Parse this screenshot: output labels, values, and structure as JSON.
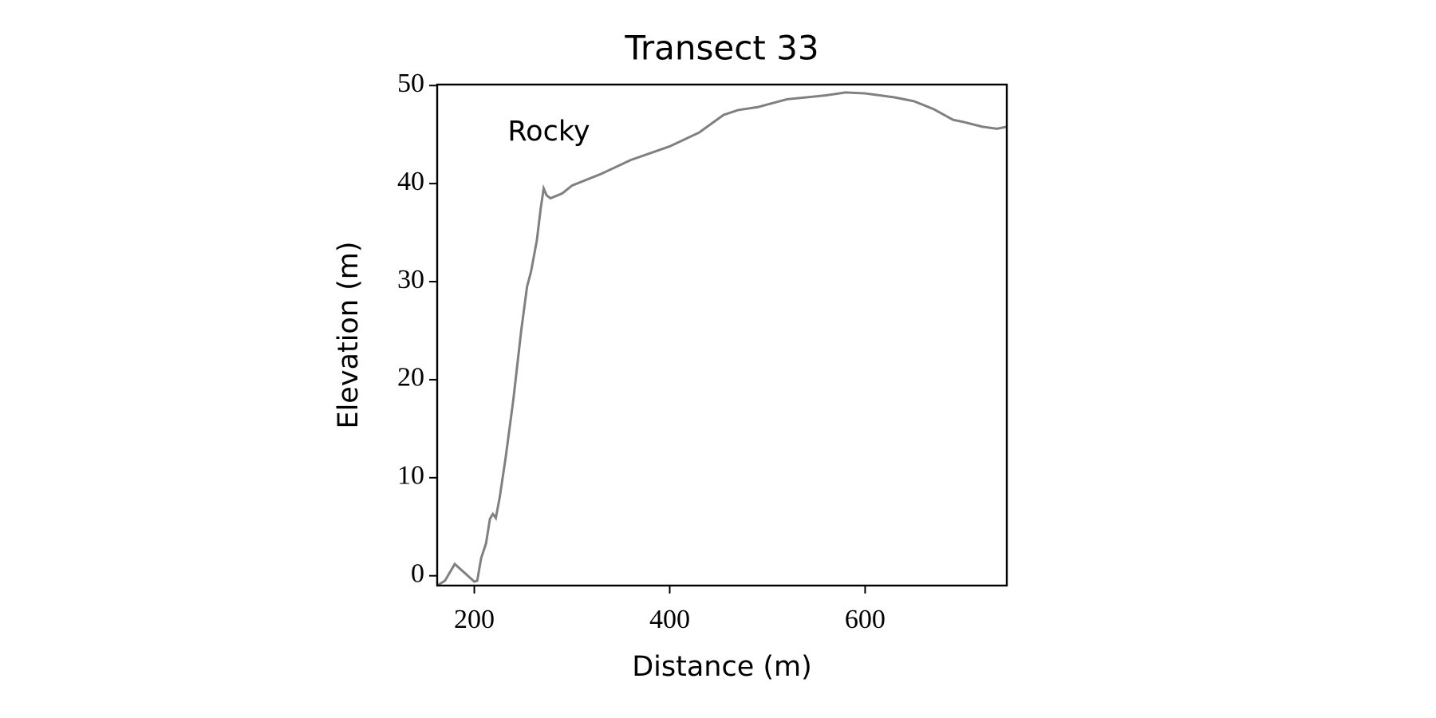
{
  "chart_data": {
    "type": "line",
    "title": "Transect 33",
    "x_label": "Distance (m)",
    "y_label": "Elevation (m)",
    "annotation": "Rocky",
    "x": [
      162,
      170,
      180,
      190,
      200,
      203,
      207,
      212,
      216,
      219,
      222,
      226,
      232,
      240,
      248,
      254,
      258,
      264,
      268,
      271,
      274,
      278,
      290,
      300,
      330,
      360,
      400,
      430,
      455,
      470,
      490,
      520,
      560,
      580,
      600,
      630,
      650,
      670,
      690,
      700,
      720,
      735,
      745
    ],
    "series": [
      {
        "name": "Elevation",
        "color": "#808080",
        "values": [
          -1.0,
          -0.5,
          1.2,
          0.3,
          -0.6,
          -0.5,
          1.8,
          3.3,
          5.8,
          6.3,
          5.9,
          8,
          12,
          18,
          25,
          29.5,
          31,
          34.2,
          37.5,
          39.5,
          38.8,
          38.5,
          39,
          39.8,
          41,
          42.4,
          43.8,
          45.2,
          47,
          47.5,
          47.8,
          48.6,
          49,
          49.3,
          49.2,
          48.8,
          48.4,
          47.6,
          46.5,
          46.3,
          45.8,
          45.6,
          45.8
        ]
      }
    ],
    "xlim": [
      162,
      745
    ],
    "ylim": [
      -1.0,
      50.1
    ],
    "xticks": [
      200,
      400,
      600
    ],
    "yticks": [
      0,
      10,
      20,
      30,
      40,
      50
    ],
    "grid": false
  }
}
